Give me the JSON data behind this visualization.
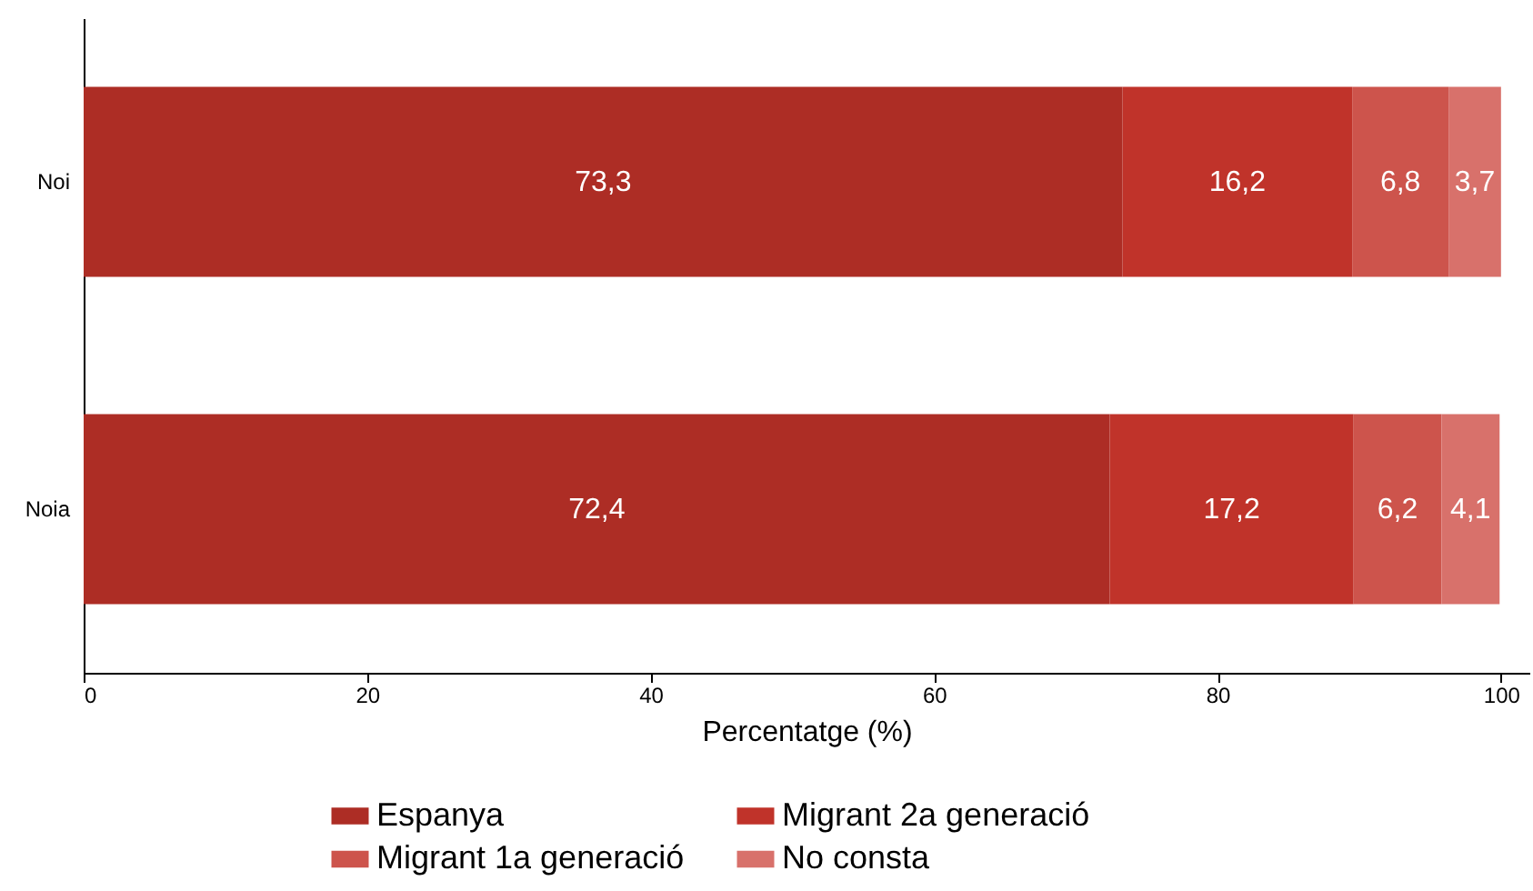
{
  "chart_data": {
    "type": "bar",
    "orientation": "horizontal",
    "stacked": true,
    "xlabel": "Percentatge (%)",
    "categories": [
      "Noi",
      "Noia"
    ],
    "series": [
      {
        "name": "Espanya",
        "color": "#ad2d25",
        "values": [
          73.3,
          72.4
        ],
        "value_labels": [
          "73,3",
          "72,4"
        ]
      },
      {
        "name": "Migrant 2a generació",
        "color": "#c0332a",
        "values": [
          16.2,
          17.2
        ],
        "value_labels": [
          "16,2",
          "17,2"
        ]
      },
      {
        "name": "Migrant 1a generació",
        "color": "#cd544c",
        "values": [
          6.8,
          6.2
        ],
        "value_labels": [
          "6,8",
          "6,2"
        ]
      },
      {
        "name": "No consta",
        "color": "#d8716b",
        "values": [
          3.7,
          4.1
        ],
        "value_labels": [
          "3,7",
          "4,1"
        ]
      }
    ],
    "xlim": [
      0,
      102
    ],
    "xticks": [
      0,
      20,
      40,
      60,
      80,
      100
    ],
    "legend": "bottom",
    "grid": false
  }
}
